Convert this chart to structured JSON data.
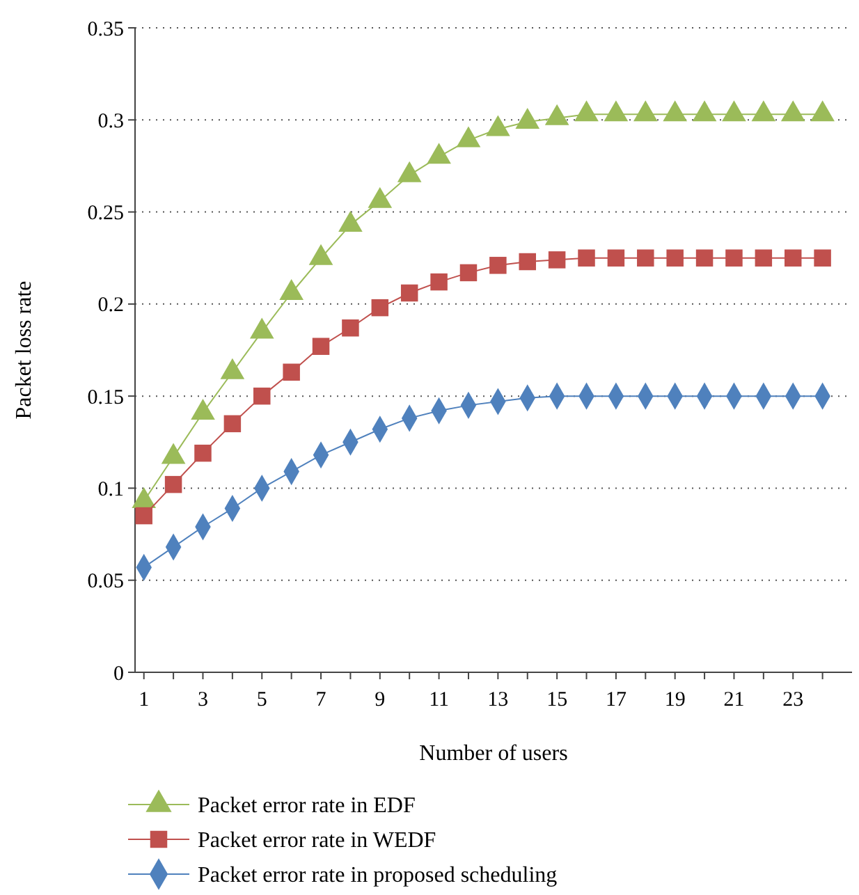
{
  "chart_data": {
    "type": "line",
    "xlabel": "Number of users",
    "ylabel": "Packet loss rate",
    "x": [
      1,
      2,
      3,
      4,
      5,
      6,
      7,
      8,
      9,
      10,
      11,
      12,
      13,
      14,
      15,
      16,
      17,
      18,
      19,
      20,
      21,
      22,
      23,
      24
    ],
    "xlim": [
      0.7,
      25
    ],
    "xticks": [
      1,
      {
        "value": 2,
        "label": null
      },
      3,
      {
        "value": 4,
        "label": null
      },
      5,
      {
        "value": 6,
        "label": null
      },
      7,
      {
        "value": 8,
        "label": null
      },
      9,
      {
        "value": 10,
        "label": null
      },
      11,
      {
        "value": 12,
        "label": null
      },
      13,
      {
        "value": 14,
        "label": null
      },
      15,
      {
        "value": 16,
        "label": null
      },
      17,
      {
        "value": 18,
        "label": null
      },
      19,
      {
        "value": 20,
        "label": null
      },
      21,
      {
        "value": 22,
        "label": null
      },
      23,
      {
        "value": 24,
        "label": null
      }
    ],
    "series": [
      {
        "name": "Packet error rate in EDF",
        "color": "#9bbb59",
        "marker": "triangle",
        "values": [
          0.093,
          0.117,
          0.141,
          0.163,
          0.185,
          0.206,
          0.225,
          0.243,
          0.256,
          0.27,
          0.28,
          0.289,
          0.295,
          0.299,
          0.301,
          0.303,
          0.303,
          0.303,
          0.303,
          0.303,
          0.303,
          0.303,
          0.303,
          0.303
        ]
      },
      {
        "name": "Packet error rate in WEDF",
        "color": "#c0504d",
        "marker": "square",
        "values": [
          0.085,
          0.102,
          0.119,
          0.135,
          0.15,
          0.163,
          0.177,
          0.187,
          0.198,
          0.206,
          0.212,
          0.217,
          0.221,
          0.223,
          0.224,
          0.225,
          0.225,
          0.225,
          0.225,
          0.225,
          0.225,
          0.225,
          0.225,
          0.225
        ]
      },
      {
        "name": "Packet error rate in proposed scheduling",
        "color": "#4f81bd",
        "marker": "diamond",
        "values": [
          0.057,
          0.068,
          0.079,
          0.089,
          0.1,
          0.109,
          0.118,
          0.125,
          0.132,
          0.138,
          0.142,
          0.145,
          0.147,
          0.149,
          0.15,
          0.15,
          0.15,
          0.15,
          0.15,
          0.15,
          0.15,
          0.15,
          0.15,
          0.15
        ]
      }
    ],
    "ylim": [
      0,
      0.35
    ],
    "yticks": [
      0,
      0.05,
      0.1,
      0.15,
      0.2,
      0.25,
      0.3,
      0.35
    ],
    "grid": "y",
    "legend": "bottom",
    "line_style": "solid"
  }
}
